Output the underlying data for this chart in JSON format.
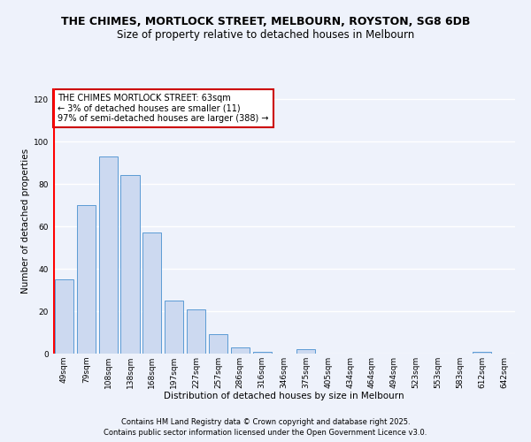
{
  "title1": "THE CHIMES, MORTLOCK STREET, MELBOURN, ROYSTON, SG8 6DB",
  "title2": "Size of property relative to detached houses in Melbourn",
  "xlabel": "Distribution of detached houses by size in Melbourn",
  "ylabel": "Number of detached properties",
  "categories": [
    "49sqm",
    "79sqm",
    "108sqm",
    "138sqm",
    "168sqm",
    "197sqm",
    "227sqm",
    "257sqm",
    "286sqm",
    "316sqm",
    "346sqm",
    "375sqm",
    "405sqm",
    "434sqm",
    "464sqm",
    "494sqm",
    "523sqm",
    "553sqm",
    "583sqm",
    "612sqm",
    "642sqm"
  ],
  "values": [
    35,
    70,
    93,
    84,
    57,
    25,
    21,
    9,
    3,
    1,
    0,
    2,
    0,
    0,
    0,
    0,
    0,
    0,
    0,
    1,
    0
  ],
  "bar_color": "#ccd9f0",
  "bar_edge_color": "#5b9bd5",
  "annotation_text": "THE CHIMES MORTLOCK STREET: 63sqm\n← 3% of detached houses are smaller (11)\n97% of semi-detached houses are larger (388) →",
  "annotation_box_color": "#ffffff",
  "annotation_border_color": "#cc0000",
  "ylim": [
    0,
    125
  ],
  "yticks": [
    0,
    20,
    40,
    60,
    80,
    100,
    120
  ],
  "footer1": "Contains HM Land Registry data © Crown copyright and database right 2025.",
  "footer2": "Contains public sector information licensed under the Open Government Licence v3.0.",
  "bg_color": "#eef2fb",
  "plot_bg_color": "#eef2fb",
  "grid_color": "#ffffff",
  "title_fontsize": 9,
  "subtitle_fontsize": 8.5,
  "tick_fontsize": 6.5,
  "label_fontsize": 7.5,
  "footer_fontsize": 6
}
